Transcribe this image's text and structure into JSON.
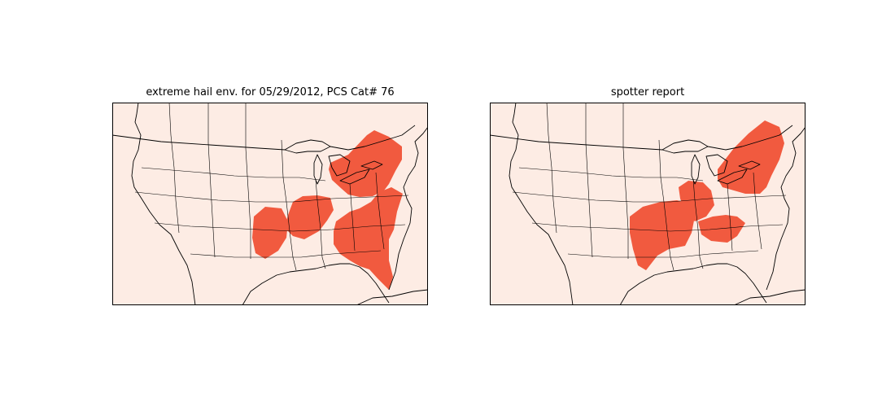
{
  "colors": {
    "map_background": "#fdece4",
    "hail_region": "#f15a3f",
    "coastline": "#000000",
    "state_border": "#000000",
    "frame": "#000000"
  },
  "panels": [
    {
      "title": "extreme hail env. for 05/29/2012, PCS Cat# 76"
    },
    {
      "title": "spotter report"
    }
  ]
}
